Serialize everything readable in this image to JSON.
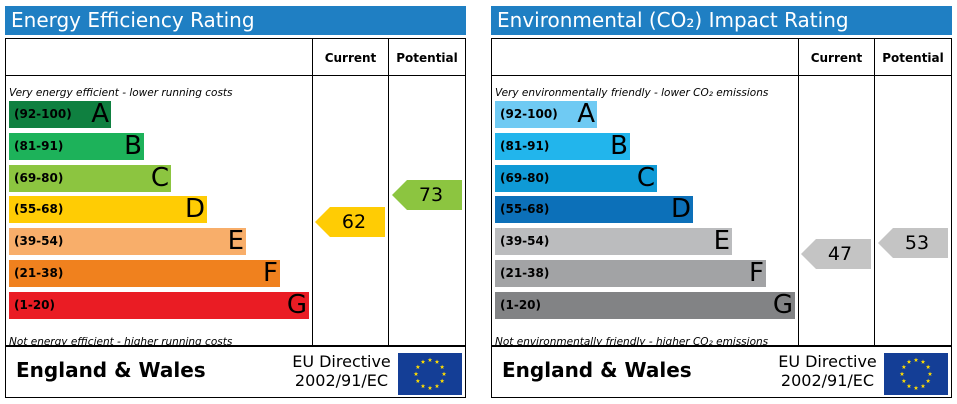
{
  "chart_data": [
    {
      "type": "bar",
      "title": "Energy Efficiency Rating",
      "top_caption": "Very energy efficient - lower running costs",
      "bottom_caption": "Not energy efficient - higher running costs",
      "column_headers": [
        "Current",
        "Potential"
      ],
      "bands": [
        {
          "range": "(92-100)",
          "letter": "A",
          "color": "#0f8040"
        },
        {
          "range": "(81-91)",
          "letter": "B",
          "color": "#1db25a"
        },
        {
          "range": "(69-80)",
          "letter": "C",
          "color": "#8cc540"
        },
        {
          "range": "(55-68)",
          "letter": "D",
          "color": "#ffcc04"
        },
        {
          "range": "(39-54)",
          "letter": "E",
          "color": "#f8ae6a"
        },
        {
          "range": "(21-38)",
          "letter": "F",
          "color": "#f0811e"
        },
        {
          "range": "(1-20)",
          "letter": "G",
          "color": "#ea1c24"
        }
      ],
      "current": {
        "value": 62,
        "color": "#ffcc04"
      },
      "potential": {
        "value": 73,
        "color": "#8cc540"
      },
      "footer": {
        "region": "England & Wales",
        "directive_line1": "EU Directive",
        "directive_line2": "2002/91/EC"
      }
    },
    {
      "type": "bar",
      "title": "Environmental (CO₂) Impact Rating",
      "top_caption": "Very environmentally friendly - lower CO₂ emissions",
      "bottom_caption": "Not environmentally friendly - higher CO₂ emissions",
      "column_headers": [
        "Current",
        "Potential"
      ],
      "bands": [
        {
          "range": "(92-100)",
          "letter": "A",
          "color": "#6fcaf3"
        },
        {
          "range": "(81-91)",
          "letter": "B",
          "color": "#22b5ec"
        },
        {
          "range": "(69-80)",
          "letter": "C",
          "color": "#0f9ad6"
        },
        {
          "range": "(55-68)",
          "letter": "D",
          "color": "#0c70b9"
        },
        {
          "range": "(39-54)",
          "letter": "E",
          "color": "#bbbcbe"
        },
        {
          "range": "(21-38)",
          "letter": "F",
          "color": "#a2a3a5"
        },
        {
          "range": "(1-20)",
          "letter": "G",
          "color": "#828385"
        }
      ],
      "current": {
        "value": 47,
        "color": "#c4c4c4"
      },
      "potential": {
        "value": 53,
        "color": "#c4c4c4"
      },
      "footer": {
        "region": "England & Wales",
        "directive_line1": "EU Directive",
        "directive_line2": "2002/91/EC"
      }
    }
  ]
}
